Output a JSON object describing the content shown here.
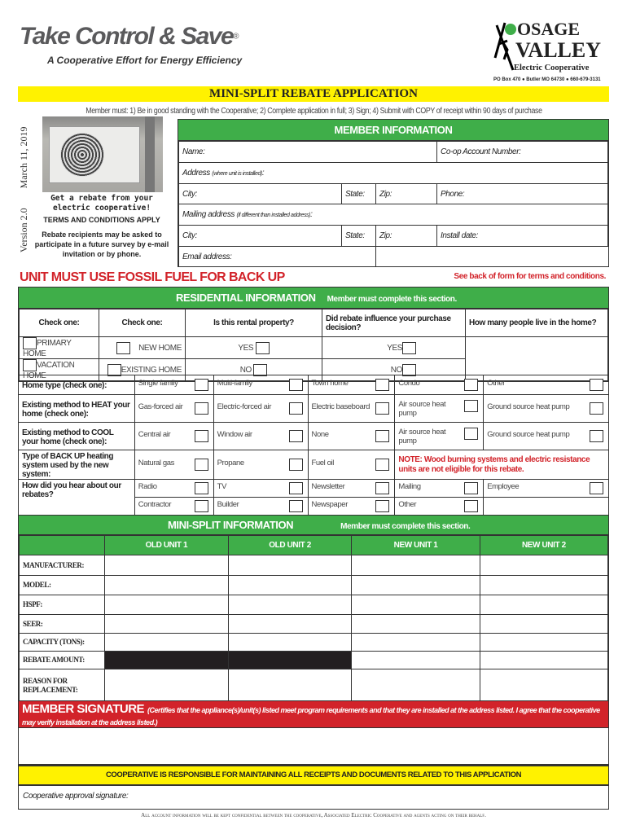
{
  "header": {
    "logo_text": "Take Control & Save",
    "logo_registered": "®",
    "tagline": "A Cooperative Effort for Energy Efficiency",
    "coop_logo_line1": "OSAGE",
    "coop_logo_line2": "VALLEY",
    "coop_logo_line3": "Electric Cooperative",
    "coop_address": "PO Box 470 ● Butler MO 64730 ● 660-679-3131"
  },
  "title": "MINI-SPLIT REBATE APPLICATION",
  "requirements": "Member must: 1) Be in good standing with the Cooperative; 2) Complete application in full;  3) Sign;  4) Submit with COPY of receipt within 90 days of purchase",
  "version": "Version 2.0",
  "date": "March 11, 2019",
  "promo": {
    "headline": "Get a rebate from your electric cooperative!",
    "terms": "TERMS AND CONDITIONS APPLY",
    "survey": "Rebate recipients may be asked to participate in a future survey by e-mail invitation or by phone."
  },
  "member_info": {
    "header": "MEMBER INFORMATION",
    "name": "Name:",
    "account": "Co-op Account Number:",
    "address": "Address",
    "address_note": "(where unit is installed)",
    "city": "City:",
    "state": "State:",
    "zip": "Zip:",
    "phone": "Phone:",
    "mailing": "Mailing address",
    "mailing_note": "(if different than installed address)",
    "install_date": "Install date:",
    "email": "Email address:"
  },
  "warning": "UNIT MUST USE FOSSIL FUEL FOR BACK UP",
  "terms_note": "See back of form for terms and conditions.",
  "residential": {
    "header": "RESIDENTIAL INFORMATION",
    "subheader": "Member must complete this section.",
    "columns": [
      "Check one:",
      "Check one:",
      "Is this rental property?",
      "Did rebate influence your purchase decision?",
      "How many people live in the home?"
    ],
    "row1": [
      "PRIMARY HOME",
      "NEW HOME",
      "YES",
      "YES"
    ],
    "row2": [
      "VACATION HOME",
      "EXISTING HOME",
      "NO",
      "NO"
    ]
  },
  "home_rows": [
    {
      "label": "Home type (check one):",
      "options": [
        "Single family",
        "Multi-family",
        "Town home",
        "Condo",
        "Other"
      ]
    },
    {
      "label": "Existing method to HEAT your home (check one):",
      "options": [
        "Gas-forced air",
        "Electric-forced air",
        "Electric baseboard",
        "Air source heat pump",
        "Ground source heat pump"
      ]
    },
    {
      "label": "Existing method to COOL your home (check one):",
      "options": [
        "Central air",
        "Window air",
        "None",
        "Air source heat pump",
        "Ground source heat pump"
      ]
    },
    {
      "label": "Type of BACK UP heating system used by the new system:",
      "options": [
        "Natural gas",
        "Propane",
        "Fuel oil"
      ],
      "note": "NOTE: Wood burning systems and electric resistance units are not eligible for this rebate."
    },
    {
      "label": "How did you hear about our rebates?",
      "options": [
        "Radio",
        "TV",
        "Newsletter",
        "Mailing",
        "Employee"
      ],
      "options2": [
        "Contractor",
        "Builder",
        "Newspaper",
        "Other"
      ]
    }
  ],
  "minisplit": {
    "header": "MINI-SPLIT INFORMATION",
    "subheader": "Member must complete this section.",
    "columns": [
      "OLD UNIT 1",
      "OLD UNIT 2",
      "NEW UNIT 1",
      "NEW UNIT 2"
    ],
    "rows": [
      "MANUFACTURER:",
      "MODEL:",
      "HSPF:",
      "SEER:",
      "CAPACITY (TONS):",
      "REBATE AMOUNT:",
      "REASON FOR REPLACEMENT:"
    ]
  },
  "signature": {
    "title": "MEMBER SIGNATURE",
    "text": "(Certifies that the appliance(s)/unit(s) listed meet program requirements and that they are installed at the address listed. I agree that the cooperative may verify installation at the address listed.)"
  },
  "coop_notice": "COOPERATIVE IS RESPONSIBLE FOR MAINTAINING ALL RECEIPTS AND DOCUMENTS RELATED TO THIS APPLICATION",
  "coop_signature": "Cooperative approval signature:",
  "footer": "All account information will be kept confidential between the cooperative, Associated Electric Cooperative and agents acting on their behalf.",
  "colors": {
    "green": "#3fae49",
    "yellow": "#fff200",
    "red": "#d2232a"
  }
}
